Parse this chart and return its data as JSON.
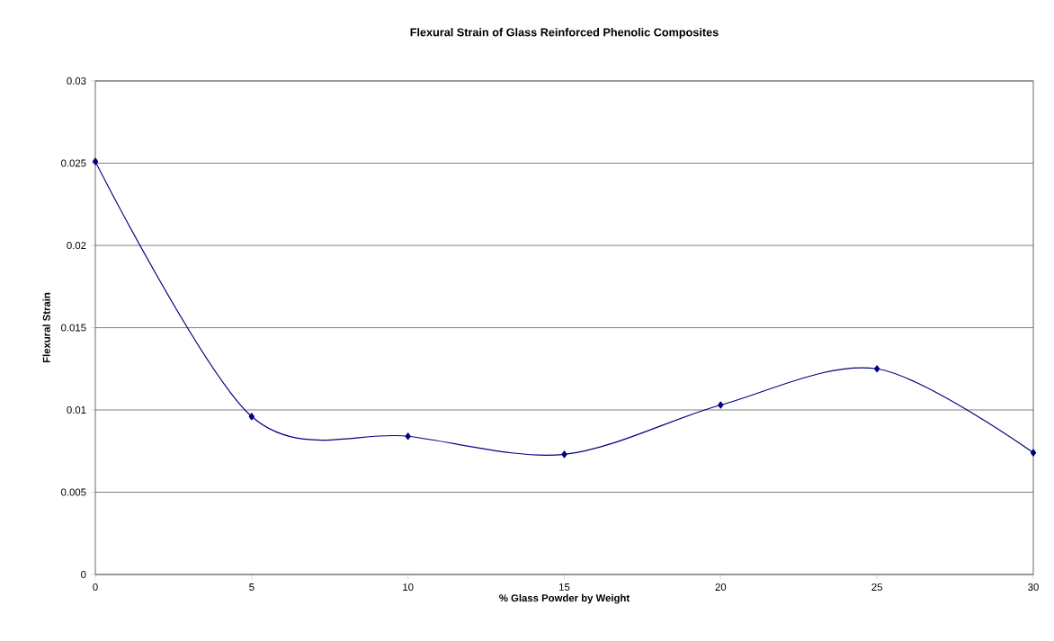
{
  "chart_data": {
    "type": "line",
    "title": "Flexural Strain of Glass Reinforced Phenolic Composites",
    "xlabel": "% Glass Powder by Weight",
    "ylabel": "Flexural Strain",
    "x": [
      0,
      5,
      10,
      15,
      20,
      25,
      30
    ],
    "series": [
      {
        "color": "#000080",
        "values": [
          0.0251,
          0.0096,
          0.0084,
          0.0073,
          0.0103,
          0.0125,
          0.0074
        ]
      }
    ],
    "xlim": [
      0,
      30
    ],
    "xticks": [
      0,
      5,
      10,
      15,
      20,
      25,
      30
    ],
    "ylim": [
      0,
      0.03
    ],
    "yticks": [
      0,
      0.005,
      0.01,
      0.015,
      0.02,
      0.025,
      0.03
    ],
    "grid": "y",
    "marker": "diamond",
    "line_style": "solid",
    "legend": false
  }
}
